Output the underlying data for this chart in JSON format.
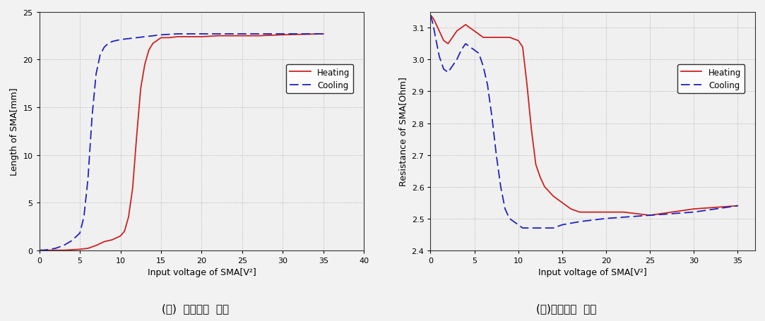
{
  "left": {
    "title": "(가)  길이변화  특성",
    "xlabel": "Input voltage of SMA[V²]",
    "ylabel": "Length of SMA[mm]",
    "xlim": [
      0,
      40
    ],
    "ylim": [
      0,
      25
    ],
    "xticks": [
      0,
      5,
      10,
      15,
      20,
      25,
      30,
      35,
      40
    ],
    "yticks": [
      0,
      5,
      10,
      15,
      20,
      25
    ],
    "heating_x": [
      0,
      0.5,
      1,
      2,
      3,
      4,
      5,
      6,
      7,
      8,
      9,
      10,
      10.5,
      11,
      11.5,
      12,
      12.5,
      13,
      13.5,
      14,
      14.5,
      15,
      16,
      17,
      18,
      19,
      20,
      22,
      25,
      27,
      30,
      35
    ],
    "heating_y": [
      0,
      0,
      0,
      0,
      0,
      0.05,
      0.1,
      0.2,
      0.5,
      0.9,
      1.1,
      1.5,
      2.0,
      3.5,
      6.5,
      12.0,
      17.0,
      19.5,
      21.0,
      21.7,
      22.0,
      22.3,
      22.3,
      22.4,
      22.4,
      22.4,
      22.4,
      22.5,
      22.5,
      22.5,
      22.6,
      22.7
    ],
    "cooling_x": [
      0,
      0.5,
      1,
      2,
      3,
      4,
      5,
      5.5,
      6,
      6.5,
      7,
      7.5,
      8,
      8.5,
      9,
      9.5,
      10,
      11,
      12,
      13,
      14,
      15,
      17,
      20,
      25,
      30,
      35
    ],
    "cooling_y": [
      0,
      0,
      0.05,
      0.2,
      0.5,
      1.0,
      1.8,
      3.5,
      7.5,
      14.0,
      18.5,
      20.5,
      21.3,
      21.7,
      21.9,
      22.0,
      22.1,
      22.2,
      22.3,
      22.4,
      22.5,
      22.6,
      22.7,
      22.7,
      22.7,
      22.7,
      22.7
    ]
  },
  "right": {
    "title": "(나)저항변화  특성",
    "xlabel": "Input voltage of SMA[V²]",
    "ylabel": "Resistance of SMA[Ohm]",
    "xlim": [
      0,
      37
    ],
    "ylim": [
      2.4,
      3.15
    ],
    "xticks": [
      0,
      5,
      10,
      15,
      20,
      25,
      30,
      35
    ],
    "yticks": [
      2.4,
      2.5,
      2.6,
      2.7,
      2.8,
      2.9,
      3.0,
      3.1
    ],
    "heating_x": [
      0,
      0.3,
      0.5,
      1,
      1.5,
      2,
      2.5,
      3,
      3.5,
      4,
      4.5,
      5,
      5.5,
      6,
      7,
      8,
      9,
      10,
      10.5,
      11,
      11.5,
      12,
      12.5,
      13,
      14,
      15,
      16,
      17,
      18,
      20,
      22,
      25,
      30,
      35
    ],
    "heating_y": [
      3.14,
      3.13,
      3.12,
      3.09,
      3.06,
      3.05,
      3.07,
      3.09,
      3.1,
      3.11,
      3.1,
      3.09,
      3.08,
      3.07,
      3.07,
      3.07,
      3.07,
      3.06,
      3.04,
      2.92,
      2.78,
      2.67,
      2.63,
      2.6,
      2.57,
      2.55,
      2.53,
      2.52,
      2.52,
      2.52,
      2.52,
      2.51,
      2.53,
      2.54
    ],
    "cooling_x": [
      0,
      0.3,
      0.5,
      1,
      1.5,
      2,
      2.5,
      3,
      3.5,
      4,
      4.5,
      5,
      5.5,
      6,
      6.5,
      7,
      7.5,
      8,
      8.5,
      9,
      9.5,
      10,
      10.5,
      11,
      12,
      13,
      14,
      15,
      17,
      20,
      25,
      30,
      35
    ],
    "cooling_y": [
      3.14,
      3.11,
      3.08,
      3.01,
      2.97,
      2.96,
      2.98,
      3.0,
      3.03,
      3.05,
      3.04,
      3.03,
      3.02,
      2.98,
      2.92,
      2.82,
      2.7,
      2.6,
      2.53,
      2.5,
      2.49,
      2.48,
      2.47,
      2.47,
      2.47,
      2.47,
      2.47,
      2.48,
      2.49,
      2.5,
      2.51,
      2.52,
      2.54
    ]
  },
  "heating_color": "#cc2222",
  "cooling_color": "#2222bb",
  "bg_color": "#f2f2f2",
  "plot_bg": "#f0f0f0",
  "grid_color": "#aaaaaa"
}
